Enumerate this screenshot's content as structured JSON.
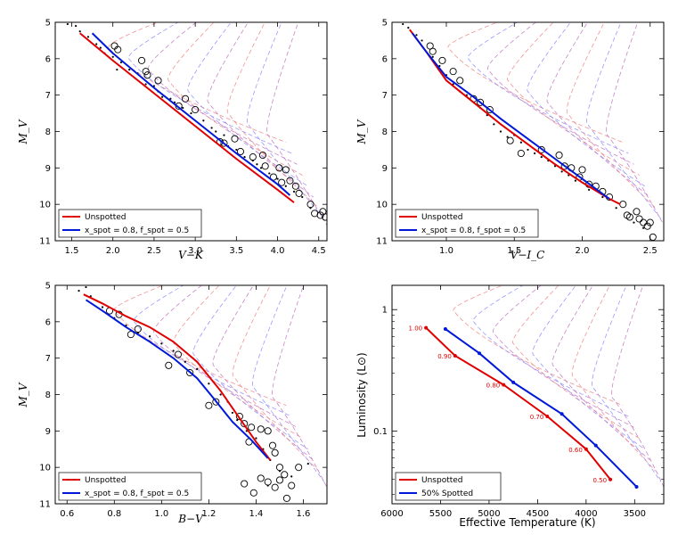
{
  "colors": {
    "unspotted": "#e00000",
    "spotted": "#0018d8",
    "iso_red": "#f08080",
    "iso_blue": "#8888ff",
    "iso_purple": "#c070c0"
  },
  "chart_data": [
    {
      "id": "vk",
      "type": "scatter",
      "xlabel": "V−K",
      "ylabel": "M_V",
      "xlim": [
        1.3,
        4.6
      ],
      "ylim": [
        11,
        5
      ],
      "xticks": [
        1.5,
        2.0,
        2.5,
        3.0,
        3.5,
        4.0,
        4.5
      ],
      "xtick_labels": [
        "1.5",
        "2.0",
        "2.5",
        "3.0",
        "3.5",
        "4.0",
        "4.5"
      ],
      "yticks": [
        5,
        6,
        7,
        8,
        9,
        10,
        11
      ],
      "ytick_labels": [
        "5",
        "6",
        "7",
        "8",
        "9",
        "10",
        "11"
      ],
      "legend": [
        "Unspotted",
        "x_spot = 0.8, f_spot = 0.5"
      ],
      "legend_position": "lower-left",
      "series": [
        {
          "name": "Unspotted",
          "x": [
            1.6,
            2.0,
            2.5,
            3.0,
            3.5,
            4.0,
            4.2
          ],
          "y": [
            5.3,
            6.05,
            6.95,
            7.85,
            8.75,
            9.6,
            9.95
          ]
        },
        {
          "name": "Spotted",
          "x": [
            1.75,
            2.0,
            2.5,
            3.0,
            3.5,
            4.0,
            4.15
          ],
          "y": [
            5.3,
            5.85,
            6.8,
            7.7,
            8.6,
            9.45,
            9.75
          ]
        }
      ],
      "large_points": [
        [
          2.02,
          5.65
        ],
        [
          2.06,
          5.75
        ],
        [
          2.35,
          6.05
        ],
        [
          2.4,
          6.35
        ],
        [
          2.42,
          6.45
        ],
        [
          2.55,
          6.6
        ],
        [
          2.8,
          7.3
        ],
        [
          2.88,
          7.1
        ],
        [
          3.0,
          7.4
        ],
        [
          3.3,
          8.28
        ],
        [
          3.35,
          8.32
        ],
        [
          3.48,
          8.2
        ],
        [
          3.55,
          8.55
        ],
        [
          3.7,
          8.7
        ],
        [
          3.82,
          8.65
        ],
        [
          3.85,
          8.95
        ],
        [
          3.95,
          9.25
        ],
        [
          4.02,
          9.0
        ],
        [
          4.1,
          9.05
        ],
        [
          4.05,
          9.4
        ],
        [
          4.15,
          9.35
        ],
        [
          4.22,
          9.5
        ],
        [
          4.26,
          9.7
        ],
        [
          4.4,
          10.0
        ],
        [
          4.45,
          10.25
        ],
        [
          4.52,
          10.3
        ],
        [
          4.55,
          10.2
        ],
        [
          4.58,
          10.35
        ]
      ],
      "small_points": [
        [
          1.45,
          5.05
        ],
        [
          1.55,
          5.1
        ],
        [
          1.6,
          5.25
        ],
        [
          1.7,
          5.4
        ],
        [
          1.8,
          5.6
        ],
        [
          1.85,
          5.7
        ],
        [
          1.9,
          5.85
        ],
        [
          2.0,
          5.95
        ],
        [
          2.05,
          6.3
        ],
        [
          2.1,
          6.1
        ],
        [
          2.2,
          6.3
        ],
        [
          2.3,
          6.4
        ],
        [
          2.4,
          6.7
        ],
        [
          2.5,
          6.75
        ],
        [
          2.55,
          6.9
        ],
        [
          2.6,
          7.05
        ],
        [
          2.7,
          7.1
        ],
        [
          2.75,
          7.2
        ],
        [
          2.85,
          7.35
        ],
        [
          2.95,
          7.5
        ],
        [
          3.1,
          7.7
        ],
        [
          3.2,
          7.9
        ],
        [
          3.25,
          8.0
        ],
        [
          3.35,
          8.1
        ],
        [
          3.4,
          8.4
        ],
        [
          3.5,
          8.5
        ],
        [
          3.6,
          8.7
        ],
        [
          3.7,
          8.8
        ],
        [
          3.75,
          8.9
        ],
        [
          3.8,
          9.0
        ],
        [
          3.9,
          9.15
        ],
        [
          4.0,
          9.3
        ],
        [
          4.1,
          9.5
        ],
        [
          4.2,
          9.65
        ],
        [
          4.3,
          9.8
        ],
        [
          4.4,
          10.1
        ]
      ]
    },
    {
      "id": "vi",
      "type": "scatter",
      "xlabel": "V−I_C",
      "ylabel": "M_V",
      "xlim": [
        0.6,
        2.6
      ],
      "ylim": [
        11,
        5
      ],
      "xticks": [
        1.0,
        1.5,
        2.0,
        2.5
      ],
      "xtick_labels": [
        "1.0",
        "1.5",
        "2.0",
        "2.5"
      ],
      "yticks": [
        5,
        6,
        7,
        8,
        9,
        10,
        11
      ],
      "ytick_labels": [
        "5",
        "6",
        "7",
        "8",
        "9",
        "10",
        "11"
      ],
      "legend": [
        "Unspotted",
        "x_spot = 0.8, f_spot = 0.5"
      ],
      "legend_position": "lower-left",
      "series": [
        {
          "name": "Unspotted",
          "x": [
            0.73,
            0.85,
            1.0,
            1.2,
            1.4,
            1.6,
            1.8,
            2.0,
            2.2,
            2.28
          ],
          "y": [
            5.2,
            5.8,
            6.6,
            7.2,
            7.8,
            8.35,
            8.9,
            9.4,
            9.85,
            10.0
          ]
        },
        {
          "name": "Spotted",
          "x": [
            0.75,
            0.85,
            1.0,
            1.2,
            1.4,
            1.6,
            1.8,
            2.0,
            2.2
          ],
          "y": [
            5.3,
            5.8,
            6.5,
            7.05,
            7.65,
            8.2,
            8.75,
            9.3,
            9.85
          ]
        }
      ],
      "large_points": [
        [
          0.88,
          5.65
        ],
        [
          0.9,
          5.8
        ],
        [
          0.97,
          6.05
        ],
        [
          1.05,
          6.35
        ],
        [
          1.1,
          6.6
        ],
        [
          1.2,
          7.1
        ],
        [
          1.25,
          7.2
        ],
        [
          1.32,
          7.4
        ],
        [
          1.47,
          8.25
        ],
        [
          1.55,
          8.6
        ],
        [
          1.7,
          8.5
        ],
        [
          1.83,
          8.65
        ],
        [
          1.87,
          8.95
        ],
        [
          1.92,
          9.0
        ],
        [
          1.98,
          9.25
        ],
        [
          2.0,
          9.05
        ],
        [
          2.05,
          9.45
        ],
        [
          2.1,
          9.5
        ],
        [
          2.15,
          9.65
        ],
        [
          2.2,
          9.8
        ],
        [
          2.3,
          10.0
        ],
        [
          2.33,
          10.3
        ],
        [
          2.35,
          10.35
        ],
        [
          2.4,
          10.2
        ],
        [
          2.42,
          10.4
        ],
        [
          2.45,
          10.5
        ],
        [
          2.48,
          10.6
        ],
        [
          2.5,
          10.5
        ],
        [
          2.52,
          10.9
        ]
      ],
      "small_points": [
        [
          0.68,
          5.05
        ],
        [
          0.72,
          5.15
        ],
        [
          0.78,
          5.35
        ],
        [
          0.82,
          5.5
        ],
        [
          0.9,
          5.95
        ],
        [
          0.95,
          6.2
        ],
        [
          1.0,
          6.45
        ],
        [
          1.05,
          6.7
        ],
        [
          1.1,
          6.9
        ],
        [
          1.15,
          7.0
        ],
        [
          1.25,
          7.35
        ],
        [
          1.3,
          7.55
        ],
        [
          1.35,
          7.8
        ],
        [
          1.4,
          8.0
        ],
        [
          1.45,
          8.15
        ],
        [
          1.5,
          8.1
        ],
        [
          1.55,
          8.3
        ],
        [
          1.6,
          8.5
        ],
        [
          1.65,
          8.6
        ],
        [
          1.7,
          8.7
        ],
        [
          1.75,
          8.8
        ],
        [
          1.8,
          8.95
        ],
        [
          1.85,
          9.1
        ],
        [
          1.9,
          9.2
        ],
        [
          1.95,
          9.35
        ],
        [
          2.05,
          9.6
        ],
        [
          2.15,
          9.8
        ],
        [
          2.25,
          10.1
        ],
        [
          2.38,
          10.5
        ],
        [
          2.45,
          10.65
        ]
      ]
    },
    {
      "id": "bv",
      "type": "scatter",
      "xlabel": "B−V",
      "ylabel": "M_V",
      "xlim": [
        0.55,
        1.7
      ],
      "ylim": [
        11,
        5
      ],
      "xticks": [
        0.6,
        0.8,
        1.0,
        1.2,
        1.4,
        1.6
      ],
      "xtick_labels": [
        "0.6",
        "0.8",
        "1.0",
        "1.2",
        "1.4",
        "1.6"
      ],
      "yticks": [
        5,
        6,
        7,
        8,
        9,
        10,
        11
      ],
      "ytick_labels": [
        "5",
        "6",
        "7",
        "8",
        "9",
        "10",
        "11"
      ],
      "legend": [
        "Unspotted",
        "x_spot = 0.8, f_spot = 0.5"
      ],
      "legend_position": "lower-left",
      "series": [
        {
          "name": "Unspotted",
          "x": [
            0.67,
            0.75,
            0.85,
            0.95,
            1.05,
            1.15,
            1.25,
            1.33,
            1.4,
            1.46
          ],
          "y": [
            5.25,
            5.5,
            5.85,
            6.15,
            6.55,
            7.1,
            7.9,
            8.65,
            9.3,
            9.8
          ]
        },
        {
          "name": "Spotted",
          "x": [
            0.68,
            0.75,
            0.85,
            0.95,
            1.05,
            1.15,
            1.22,
            1.3,
            1.38,
            1.45
          ],
          "y": [
            5.4,
            5.7,
            6.15,
            6.55,
            7.0,
            7.55,
            8.1,
            8.75,
            9.25,
            9.75
          ]
        }
      ],
      "large_points": [
        [
          0.78,
          5.7
        ],
        [
          0.82,
          5.8
        ],
        [
          0.87,
          6.35
        ],
        [
          0.9,
          6.2
        ],
        [
          1.03,
          7.2
        ],
        [
          1.07,
          6.9
        ],
        [
          1.12,
          7.4
        ],
        [
          1.2,
          8.3
        ],
        [
          1.23,
          8.2
        ],
        [
          1.33,
          8.6
        ],
        [
          1.35,
          8.8
        ],
        [
          1.37,
          9.3
        ],
        [
          1.38,
          8.9
        ],
        [
          1.42,
          8.95
        ],
        [
          1.45,
          9.0
        ],
        [
          1.47,
          9.4
        ],
        [
          1.48,
          9.6
        ],
        [
          1.5,
          10.0
        ],
        [
          1.35,
          10.45
        ],
        [
          1.42,
          10.3
        ],
        [
          1.45,
          10.4
        ],
        [
          1.48,
          10.55
        ],
        [
          1.5,
          10.35
        ],
        [
          1.52,
          10.2
        ],
        [
          1.55,
          10.5
        ],
        [
          1.58,
          10.0
        ],
        [
          1.39,
          10.7
        ],
        [
          1.53,
          10.85
        ]
      ],
      "small_points": [
        [
          0.65,
          5.15
        ],
        [
          0.68,
          5.05
        ],
        [
          0.7,
          5.3
        ],
        [
          0.75,
          5.6
        ],
        [
          0.8,
          5.9
        ],
        [
          0.85,
          6.1
        ],
        [
          0.9,
          6.3
        ],
        [
          0.95,
          6.4
        ],
        [
          1.0,
          6.6
        ],
        [
          1.05,
          6.8
        ],
        [
          1.1,
          7.1
        ],
        [
          1.15,
          7.3
        ],
        [
          1.2,
          7.7
        ],
        [
          1.25,
          8.0
        ],
        [
          1.28,
          8.2
        ],
        [
          1.3,
          8.5
        ],
        [
          1.32,
          8.7
        ],
        [
          1.36,
          9.0
        ],
        [
          1.4,
          9.2
        ],
        [
          1.43,
          9.5
        ],
        [
          1.46,
          9.8
        ],
        [
          1.5,
          10.1
        ],
        [
          1.55,
          10.25
        ],
        [
          1.62,
          9.9
        ],
        [
          1.45,
          10.5
        ]
      ]
    },
    {
      "id": "hr",
      "type": "line",
      "xlabel": "Effective Temperature (K)",
      "ylabel": "Luminosity (L⊙)",
      "xlim": [
        6000,
        3200
      ],
      "ylim_log": [
        -1.6,
        0.2
      ],
      "xticks": [
        6000,
        5500,
        5000,
        4500,
        4000,
        3500
      ],
      "xtick_labels": [
        "6000",
        "5500",
        "5000",
        "4500",
        "4000",
        "3500"
      ],
      "yticks_log": [
        -1,
        0
      ],
      "ytick_labels": [
        "0.1",
        "1"
      ],
      "legend": [
        "Unspotted",
        "50% Spotted"
      ],
      "legend_position": "lower-left",
      "mass_labels": [
        "1.00",
        "0.90",
        "0.80",
        "0.70",
        "0.60",
        "0.50"
      ],
      "series": [
        {
          "name": "Unspotted",
          "teff": [
            5650,
            5350,
            4850,
            4400,
            4000,
            3750
          ],
          "logL": [
            -0.15,
            -0.38,
            -0.62,
            -0.88,
            -1.15,
            -1.4
          ]
        },
        {
          "name": "50% Spotted",
          "teff": [
            5450,
            5100,
            4750,
            4250,
            3900,
            3480
          ],
          "logL": [
            -0.16,
            -0.36,
            -0.6,
            -0.86,
            -1.12,
            -1.46
          ]
        }
      ]
    }
  ]
}
